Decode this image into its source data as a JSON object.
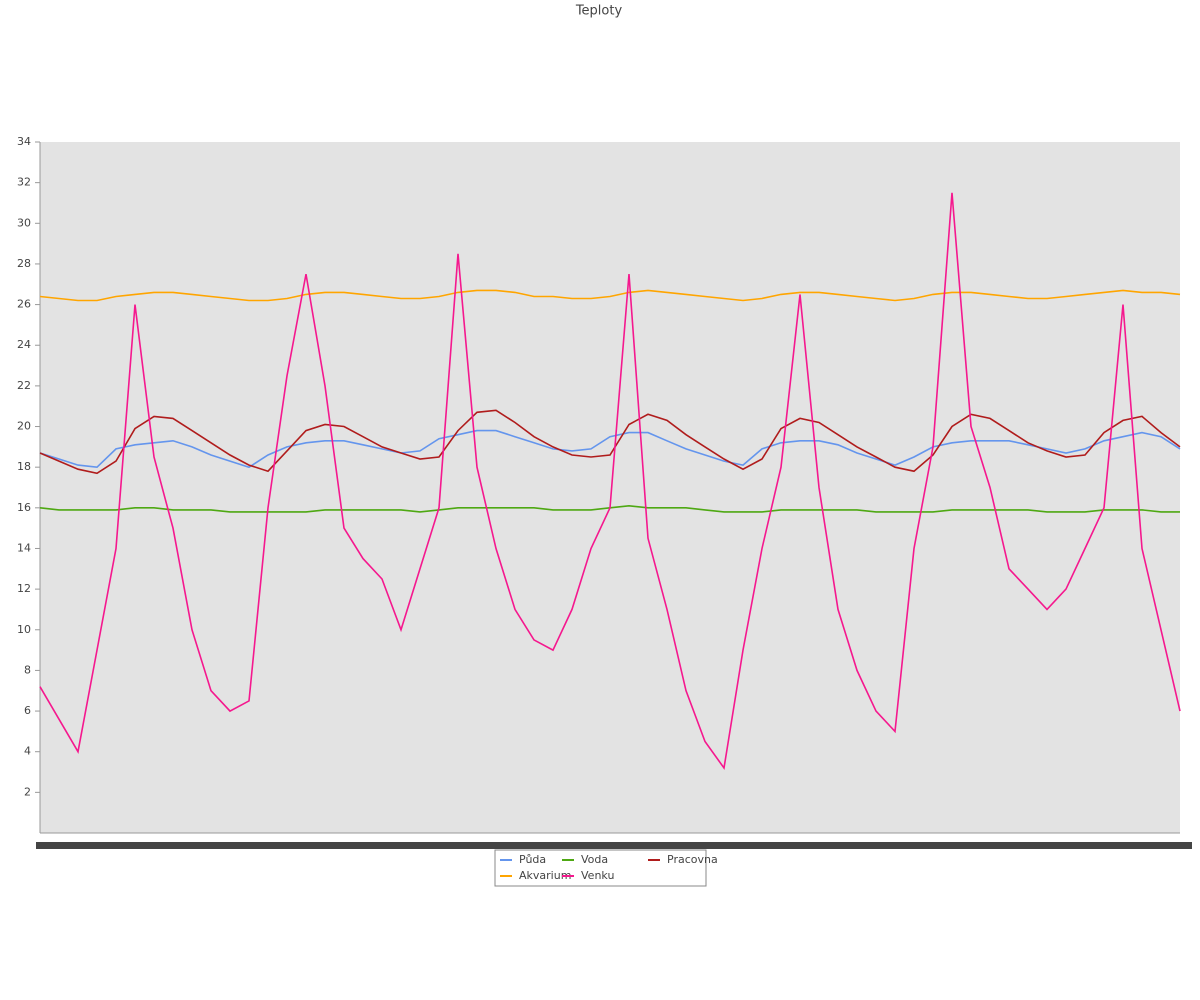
{
  "chart_data": {
    "type": "line",
    "title": "Teploty",
    "categories": [
      null,
      null,
      null,
      null,
      null,
      null,
      null,
      null,
      null,
      null,
      null,
      null,
      null,
      null,
      null,
      null,
      null,
      null,
      null,
      null,
      null,
      null,
      null,
      null,
      null,
      null,
      null,
      null,
      null,
      null,
      null,
      null,
      null,
      null,
      null,
      null,
      null,
      null,
      null,
      null,
      null,
      null,
      null,
      null,
      null,
      null,
      null,
      null,
      null,
      null,
      null,
      null,
      null,
      null,
      null,
      null,
      null,
      null,
      null,
      null,
      null
    ],
    "ylim": [
      0,
      34
    ],
    "yticks": [
      2,
      4,
      6,
      8,
      10,
      12,
      14,
      16,
      18,
      20,
      22,
      24,
      26,
      28,
      30,
      32,
      34
    ],
    "series": [
      {
        "name": "Půda",
        "color": "#6495ed",
        "values": [
          18.7,
          18.4,
          18.1,
          18.0,
          18.9,
          19.1,
          19.2,
          19.3,
          19.0,
          18.6,
          18.3,
          18.0,
          18.6,
          19.0,
          19.2,
          19.3,
          19.3,
          19.1,
          18.9,
          18.7,
          18.8,
          19.4,
          19.6,
          19.8,
          19.8,
          19.5,
          19.2,
          18.9,
          18.8,
          18.9,
          19.5,
          19.7,
          19.7,
          19.3,
          18.9,
          18.6,
          18.3,
          18.1,
          18.9,
          19.2,
          19.3,
          19.3,
          19.1,
          18.7,
          18.4,
          18.1,
          18.5,
          19.0,
          19.2,
          19.3,
          19.3,
          19.3,
          19.1,
          18.9,
          18.7,
          18.9,
          19.3,
          19.5,
          19.7,
          19.5,
          18.9
        ]
      },
      {
        "name": "Voda",
        "color": "#4ea813",
        "values": [
          16.0,
          15.9,
          15.9,
          15.9,
          15.9,
          16.0,
          16.0,
          15.9,
          15.9,
          15.9,
          15.8,
          15.8,
          15.8,
          15.8,
          15.8,
          15.9,
          15.9,
          15.9,
          15.9,
          15.9,
          15.8,
          15.9,
          16.0,
          16.0,
          16.0,
          16.0,
          16.0,
          15.9,
          15.9,
          15.9,
          16.0,
          16.1,
          16.0,
          16.0,
          16.0,
          15.9,
          15.8,
          15.8,
          15.8,
          15.9,
          15.9,
          15.9,
          15.9,
          15.9,
          15.8,
          15.8,
          15.8,
          15.8,
          15.9,
          15.9,
          15.9,
          15.9,
          15.9,
          15.8,
          15.8,
          15.8,
          15.9,
          15.9,
          15.9,
          15.8,
          15.8
        ]
      },
      {
        "name": "Pracovna",
        "color": "#b01c1c",
        "values": [
          18.7,
          18.3,
          17.9,
          17.7,
          18.3,
          19.9,
          20.5,
          20.4,
          19.8,
          19.2,
          18.6,
          18.1,
          17.8,
          18.8,
          19.8,
          20.1,
          20.0,
          19.5,
          19.0,
          18.7,
          18.4,
          18.5,
          19.8,
          20.7,
          20.8,
          20.2,
          19.5,
          19.0,
          18.6,
          18.5,
          18.6,
          20.1,
          20.6,
          20.3,
          19.6,
          19.0,
          18.4,
          17.9,
          18.4,
          19.9,
          20.4,
          20.2,
          19.6,
          19.0,
          18.5,
          18.0,
          17.8,
          18.6,
          20.0,
          20.6,
          20.4,
          19.8,
          19.2,
          18.8,
          18.5,
          18.6,
          19.7,
          20.3,
          20.5,
          19.7,
          19.0
        ]
      },
      {
        "name": "Akvarium",
        "color": "#ffa500",
        "values": [
          26.4,
          26.3,
          26.2,
          26.2,
          26.4,
          26.5,
          26.6,
          26.6,
          26.5,
          26.4,
          26.3,
          26.2,
          26.2,
          26.3,
          26.5,
          26.6,
          26.6,
          26.5,
          26.4,
          26.3,
          26.3,
          26.4,
          26.6,
          26.7,
          26.7,
          26.6,
          26.4,
          26.4,
          26.3,
          26.3,
          26.4,
          26.6,
          26.7,
          26.6,
          26.5,
          26.4,
          26.3,
          26.2,
          26.3,
          26.5,
          26.6,
          26.6,
          26.5,
          26.4,
          26.3,
          26.2,
          26.3,
          26.5,
          26.6,
          26.6,
          26.5,
          26.4,
          26.3,
          26.3,
          26.4,
          26.5,
          26.6,
          26.7,
          26.6,
          26.6,
          26.5
        ]
      },
      {
        "name": "Venku",
        "color": "#f5188e",
        "values": [
          7.2,
          5.6,
          4.0,
          9.0,
          14.0,
          26.0,
          18.5,
          15.0,
          10.0,
          7.0,
          6.0,
          6.5,
          16.0,
          22.5,
          27.5,
          22.0,
          15.0,
          13.5,
          12.5,
          10.0,
          13.0,
          16.0,
          28.5,
          18.0,
          14.0,
          11.0,
          9.5,
          9.0,
          11.0,
          14.0,
          16.0,
          27.5,
          14.5,
          11.0,
          7.0,
          4.5,
          3.2,
          9.0,
          14.0,
          18.0,
          26.5,
          17.0,
          11.0,
          8.0,
          6.0,
          5.0,
          14.0,
          19.0,
          31.5,
          20.0,
          17.0,
          13.0,
          12.0,
          11.0,
          12.0,
          14.0,
          16.0,
          26.0,
          14.0,
          10.0,
          6.0
        ]
      }
    ]
  }
}
